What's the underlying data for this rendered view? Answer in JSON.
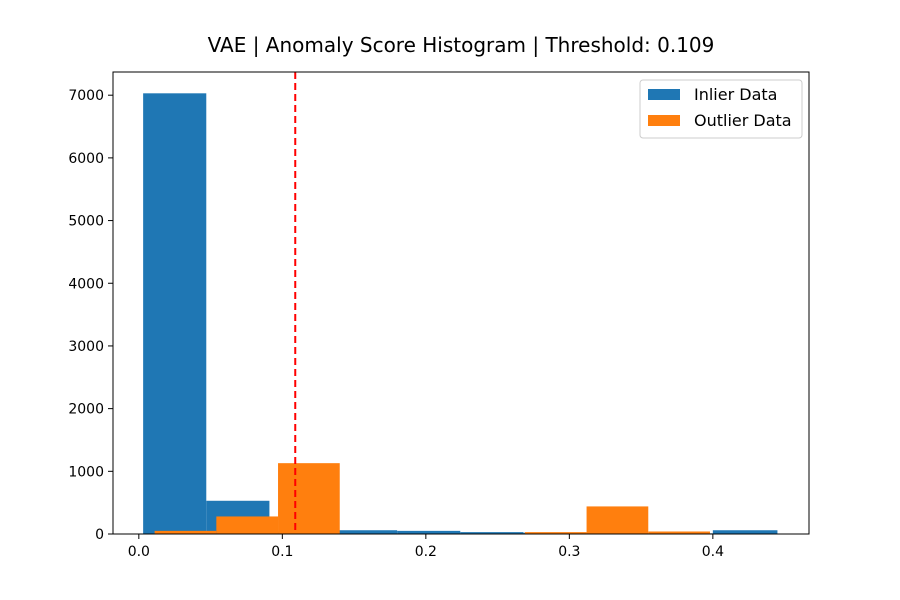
{
  "chart_data": {
    "type": "bar",
    "title": "VAE | Anomaly Score Histogram | Threshold: 0.109",
    "xlabel": "",
    "ylabel": "",
    "xlim": [
      -0.018,
      0.467
    ],
    "ylim": [
      0,
      7370
    ],
    "xticks": [
      0.0,
      0.1,
      0.2,
      0.3,
      0.4
    ],
    "xtick_labels": [
      "0.0",
      "0.1",
      "0.2",
      "0.3",
      "0.4"
    ],
    "yticks": [
      0,
      1000,
      2000,
      3000,
      4000,
      5000,
      6000,
      7000
    ],
    "ytick_labels": [
      "0",
      "1000",
      "2000",
      "3000",
      "4000",
      "5000",
      "6000",
      "7000"
    ],
    "threshold": 0.109,
    "threshold_color": "#ff0000",
    "legend_position": "upper right",
    "series": [
      {
        "name": "Inlier Data",
        "color": "#1f77b4",
        "bins": [
          {
            "x0": 0.003,
            "x1": 0.047,
            "count": 7030
          },
          {
            "x0": 0.047,
            "x1": 0.091,
            "count": 530
          },
          {
            "x0": 0.091,
            "x1": 0.135,
            "count": 40
          },
          {
            "x0": 0.135,
            "x1": 0.18,
            "count": 60
          },
          {
            "x0": 0.18,
            "x1": 0.224,
            "count": 50
          },
          {
            "x0": 0.224,
            "x1": 0.268,
            "count": 30
          },
          {
            "x0": 0.268,
            "x1": 0.312,
            "count": 20
          },
          {
            "x0": 0.312,
            "x1": 0.356,
            "count": 10
          },
          {
            "x0": 0.356,
            "x1": 0.4,
            "count": 10
          },
          {
            "x0": 0.4,
            "x1": 0.445,
            "count": 60
          }
        ]
      },
      {
        "name": "Outlier Data",
        "color": "#ff7f0e",
        "bins": [
          {
            "x0": 0.011,
            "x1": 0.054,
            "count": 50
          },
          {
            "x0": 0.054,
            "x1": 0.097,
            "count": 280
          },
          {
            "x0": 0.097,
            "x1": 0.14,
            "count": 1130
          },
          {
            "x0": 0.14,
            "x1": 0.183,
            "count": 5
          },
          {
            "x0": 0.183,
            "x1": 0.226,
            "count": 5
          },
          {
            "x0": 0.226,
            "x1": 0.269,
            "count": 5
          },
          {
            "x0": 0.269,
            "x1": 0.312,
            "count": 30
          },
          {
            "x0": 0.312,
            "x1": 0.355,
            "count": 440
          },
          {
            "x0": 0.355,
            "x1": 0.398,
            "count": 40
          }
        ]
      }
    ]
  }
}
